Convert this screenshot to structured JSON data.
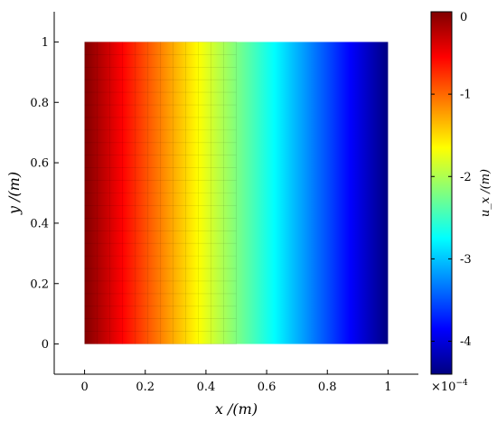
{
  "chart_data": {
    "type": "heatmap",
    "title": "",
    "xlabel": "x /(m)",
    "ylabel": "y /(m)",
    "xlim": [
      -0.1,
      1.1
    ],
    "ylim": [
      -0.1,
      1.1
    ],
    "x_ticks": [
      0,
      0.2,
      0.4,
      0.6,
      0.8,
      1
    ],
    "x_tick_labels": [
      "0",
      "0.2",
      "0.4",
      "0.6",
      "0.8",
      "1"
    ],
    "y_ticks": [
      0,
      0.2,
      0.4,
      0.6,
      0.8,
      1
    ],
    "y_tick_labels": [
      "0",
      "0.2",
      "0.4",
      "0.6",
      "0.8",
      "1"
    ],
    "field": {
      "x_range": [
        0,
        1
      ],
      "y_range": [
        0,
        1
      ],
      "x": [
        0,
        0.125,
        0.25,
        0.375,
        0.5,
        0.625,
        0.75,
        0.875,
        1
      ],
      "u_x": [
        0,
        -5.5e-05,
        -0.00011,
        -0.000165,
        -0.00022,
        -0.000275,
        -0.00033,
        -0.000385,
        -0.00044
      ],
      "variation": "linear in x, constant in y"
    },
    "mesh": {
      "x_range": [
        0,
        0.5
      ],
      "y_range": [
        0,
        1
      ],
      "nx": 12,
      "ny": 24
    },
    "colorbar": {
      "label": "u_x /(m)",
      "colormap": "jet",
      "range": [
        -4.4,
        0
      ],
      "ticks": [
        0,
        -1,
        -2,
        -3,
        -4
      ],
      "tick_labels": [
        "0",
        "-1",
        "-2",
        "-3",
        "-4"
      ],
      "multiplier_label": "×10",
      "multiplier_exponent": "−4"
    },
    "grid": false
  }
}
